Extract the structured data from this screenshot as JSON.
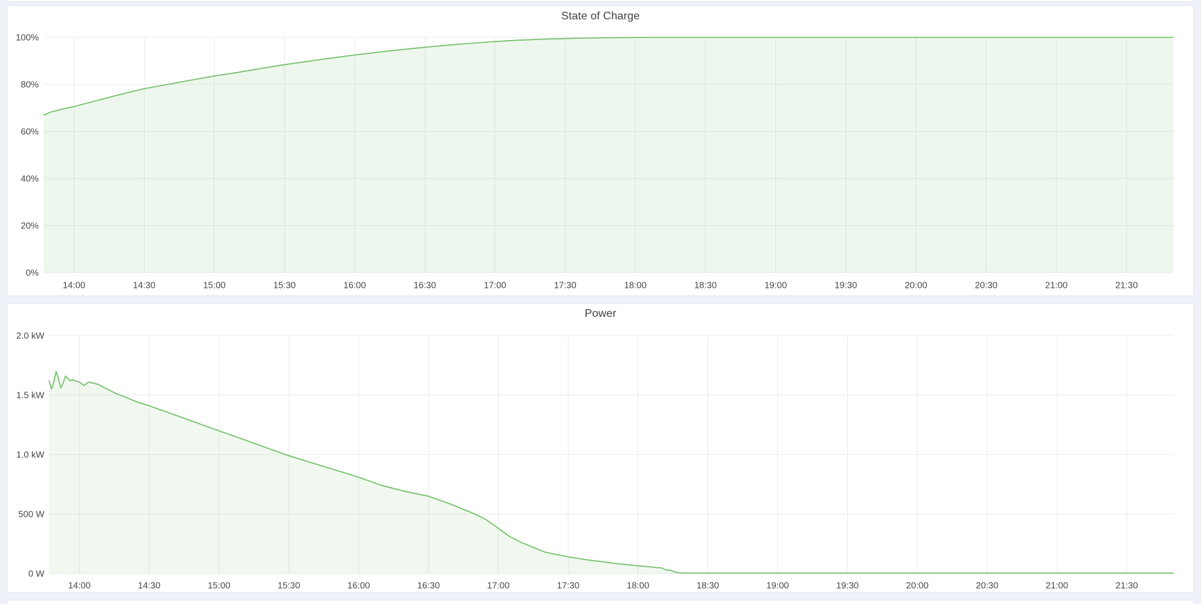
{
  "page": {
    "background_color": "#eff1f8",
    "panel_background": "#ffffff",
    "accent_green": "#73bf69"
  },
  "panels": [
    {
      "title": "State of Charge"
    },
    {
      "title": "Power"
    }
  ],
  "chart_data": [
    {
      "type": "area",
      "title": "State of Charge",
      "xlabel": "",
      "ylabel": "",
      "x_range": [
        "13:47",
        "21:50"
      ],
      "ylim": [
        0,
        100
      ],
      "grid": true,
      "legend": "none",
      "x_ticks": [
        "14:00",
        "14:30",
        "15:00",
        "15:30",
        "16:00",
        "16:30",
        "17:00",
        "17:30",
        "18:00",
        "18:30",
        "19:00",
        "19:30",
        "20:00",
        "20:30",
        "21:00",
        "21:30"
      ],
      "y_ticks": [
        {
          "value": 0,
          "label": "0%"
        },
        {
          "value": 20,
          "label": "20%"
        },
        {
          "value": 40,
          "label": "40%"
        },
        {
          "value": 60,
          "label": "60%"
        },
        {
          "value": 80,
          "label": "80%"
        },
        {
          "value": 100,
          "label": "100%"
        }
      ],
      "series": [
        {
          "name": "State of Charge",
          "color": "#73bf69",
          "fill_opacity": 0.12,
          "points": [
            [
              "13:47",
              67.0
            ],
            [
              "13:50",
              68.2
            ],
            [
              "13:55",
              69.5
            ],
            [
              "14:00",
              70.6
            ],
            [
              "14:10",
              73.2
            ],
            [
              "14:20",
              75.8
            ],
            [
              "14:30",
              78.2
            ],
            [
              "14:40",
              80.0
            ],
            [
              "14:50",
              81.8
            ],
            [
              "15:00",
              83.6
            ],
            [
              "15:10",
              85.1
            ],
            [
              "15:20",
              86.8
            ],
            [
              "15:30",
              88.4
            ],
            [
              "15:40",
              89.8
            ],
            [
              "15:50",
              91.2
            ],
            [
              "16:00",
              92.5
            ],
            [
              "16:10",
              93.7
            ],
            [
              "16:20",
              94.8
            ],
            [
              "16:30",
              95.8
            ],
            [
              "16:40",
              96.7
            ],
            [
              "16:50",
              97.5
            ],
            [
              "17:00",
              98.2
            ],
            [
              "17:10",
              98.8
            ],
            [
              "17:20",
              99.2
            ],
            [
              "17:30",
              99.5
            ],
            [
              "17:40",
              99.7
            ],
            [
              "17:50",
              99.85
            ],
            [
              "18:00",
              99.95
            ],
            [
              "18:10",
              100.0
            ],
            [
              "18:30",
              100.1
            ],
            [
              "19:00",
              100.1
            ],
            [
              "20:00",
              100.1
            ],
            [
              "21:00",
              100.1
            ],
            [
              "21:50",
              100.1
            ]
          ]
        }
      ]
    },
    {
      "type": "area",
      "title": "Power",
      "xlabel": "",
      "ylabel": "",
      "x_range": [
        "13:47",
        "21:50"
      ],
      "ylim": [
        0,
        2.0
      ],
      "grid": true,
      "legend": "none",
      "x_ticks": [
        "14:00",
        "14:30",
        "15:00",
        "15:30",
        "16:00",
        "16:30",
        "17:00",
        "17:30",
        "18:00",
        "18:30",
        "19:00",
        "19:30",
        "20:00",
        "20:30",
        "21:00",
        "21:30"
      ],
      "y_ticks": [
        {
          "value": 0,
          "label": "0 W"
        },
        {
          "value": 0.5,
          "label": "500 W"
        },
        {
          "value": 1.0,
          "label": "1.0 kW"
        },
        {
          "value": 1.5,
          "label": "1.5 kW"
        },
        {
          "value": 2.0,
          "label": "2.0 kW"
        }
      ],
      "series": [
        {
          "name": "Power",
          "color": "#73bf69",
          "fill_opacity": 0.1,
          "points": [
            [
              "13:47",
              1.62
            ],
            [
              "13:48",
              1.55
            ],
            [
              "13:49",
              1.61
            ],
            [
              "13:50",
              1.7
            ],
            [
              "13:51",
              1.64
            ],
            [
              "13:52",
              1.56
            ],
            [
              "13:53",
              1.6
            ],
            [
              "13:54",
              1.66
            ],
            [
              "13:55",
              1.64
            ],
            [
              "13:56",
              1.62
            ],
            [
              "13:57",
              1.63
            ],
            [
              "13:58",
              1.62
            ],
            [
              "14:00",
              1.61
            ],
            [
              "14:02",
              1.58
            ],
            [
              "14:04",
              1.61
            ],
            [
              "14:06",
              1.6
            ],
            [
              "14:08",
              1.59
            ],
            [
              "14:10",
              1.57
            ],
            [
              "14:15",
              1.52
            ],
            [
              "14:20",
              1.48
            ],
            [
              "14:25",
              1.44
            ],
            [
              "14:30",
              1.41
            ],
            [
              "14:40",
              1.34
            ],
            [
              "14:50",
              1.27
            ],
            [
              "15:00",
              1.2
            ],
            [
              "15:10",
              1.13
            ],
            [
              "15:20",
              1.06
            ],
            [
              "15:30",
              0.99
            ],
            [
              "15:40",
              0.93
            ],
            [
              "15:50",
              0.87
            ],
            [
              "16:00",
              0.81
            ],
            [
              "16:10",
              0.74
            ],
            [
              "16:20",
              0.69
            ],
            [
              "16:30",
              0.65
            ],
            [
              "16:40",
              0.58
            ],
            [
              "16:50",
              0.5
            ],
            [
              "16:55",
              0.45
            ],
            [
              "17:00",
              0.38
            ],
            [
              "17:05",
              0.31
            ],
            [
              "17:10",
              0.26
            ],
            [
              "17:15",
              0.22
            ],
            [
              "17:20",
              0.18
            ],
            [
              "17:25",
              0.16
            ],
            [
              "17:30",
              0.14
            ],
            [
              "17:35",
              0.125
            ],
            [
              "17:40",
              0.11
            ],
            [
              "17:45",
              0.1
            ],
            [
              "17:50",
              0.085
            ],
            [
              "17:55",
              0.075
            ],
            [
              "18:00",
              0.065
            ],
            [
              "18:03",
              0.06
            ],
            [
              "18:06",
              0.055
            ],
            [
              "18:08",
              0.05
            ],
            [
              "18:10",
              0.048
            ],
            [
              "18:12",
              0.03
            ],
            [
              "18:14",
              0.028
            ],
            [
              "18:16",
              0.012
            ],
            [
              "18:18",
              0.006
            ],
            [
              "18:20",
              0.004
            ],
            [
              "19:00",
              0.004
            ],
            [
              "20:00",
              0.004
            ],
            [
              "21:00",
              0.004
            ],
            [
              "21:50",
              0.004
            ]
          ]
        }
      ]
    }
  ]
}
